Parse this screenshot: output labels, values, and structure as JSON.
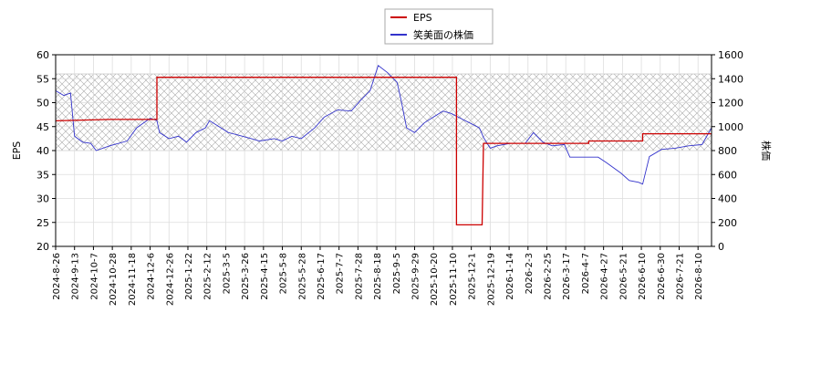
{
  "chart_data": {
    "type": "line",
    "grid": true,
    "legend": "top-center",
    "ylabel": "EPS",
    "y2label": "株価",
    "xlim": [
      0,
      486
    ],
    "ylim": [
      20,
      60
    ],
    "yticks": [
      20,
      25,
      30,
      35,
      40,
      45,
      50,
      55,
      60
    ],
    "y2lim": [
      0,
      1600
    ],
    "y2ticks": [
      0,
      200,
      400,
      600,
      800,
      1000,
      1200,
      1400,
      1600
    ],
    "shaded_range": [
      40,
      56
    ],
    "xticks": [
      {
        "value": 0,
        "label": "2024-8-26"
      },
      {
        "value": 14,
        "label": "2024-9-13"
      },
      {
        "value": 28,
        "label": "2024-10-7"
      },
      {
        "value": 42,
        "label": "2024-10-28"
      },
      {
        "value": 56,
        "label": "2024-11-18"
      },
      {
        "value": 70,
        "label": "2024-12-6"
      },
      {
        "value": 84,
        "label": "2024-12-26"
      },
      {
        "value": 98,
        "label": "2025-1-22"
      },
      {
        "value": 112,
        "label": "2025-2-12"
      },
      {
        "value": 126,
        "label": "2025-3-5"
      },
      {
        "value": 140,
        "label": "2025-3-26"
      },
      {
        "value": 154,
        "label": "2025-4-15"
      },
      {
        "value": 168,
        "label": "2025-5-8"
      },
      {
        "value": 182,
        "label": "2025-5-28"
      },
      {
        "value": 196,
        "label": "2025-6-17"
      },
      {
        "value": 210,
        "label": "2025-7-7"
      },
      {
        "value": 224,
        "label": "2025-7-28"
      },
      {
        "value": 238,
        "label": "2025-8-18"
      },
      {
        "value": 252,
        "label": "2025-9-5"
      },
      {
        "value": 266,
        "label": "2025-9-29"
      },
      {
        "value": 280,
        "label": "2025-10-20"
      },
      {
        "value": 294,
        "label": "2025-11-10"
      },
      {
        "value": 308,
        "label": "2025-12-1"
      },
      {
        "value": 322,
        "label": "2025-12-19"
      },
      {
        "value": 336,
        "label": "2026-1-14"
      },
      {
        "value": 350,
        "label": "2026-2-3"
      },
      {
        "value": 364,
        "label": "2026-2-25"
      },
      {
        "value": 378,
        "label": "2026-3-17"
      },
      {
        "value": 392,
        "label": "2026-4-7"
      },
      {
        "value": 406,
        "label": "2026-4-27"
      },
      {
        "value": 420,
        "label": "2026-5-21"
      },
      {
        "value": 434,
        "label": "2026-6-10"
      },
      {
        "value": 448,
        "label": "2026-6-30"
      },
      {
        "value": 462,
        "label": "2026-7-21"
      },
      {
        "value": 476,
        "label": "2026-8-10"
      }
    ],
    "series": [
      {
        "name": "EPS",
        "color": "#cc0000",
        "axis": "y",
        "x": [
          0,
          40,
          75,
          75,
          297,
          297,
          316,
          317,
          395,
          395,
          435,
          435,
          486
        ],
        "values": [
          46.2,
          46.5,
          46.5,
          55.3,
          55.3,
          24.5,
          24.5,
          41.5,
          41.5,
          42,
          42,
          43.5,
          43.5
        ]
      },
      {
        "name": "笑美面の株価",
        "color": "#3333cc",
        "axis": "y2",
        "x": [
          0,
          6,
          11,
          14,
          20,
          26,
          30,
          40,
          53,
          60,
          70,
          75,
          77,
          84,
          91,
          97,
          104,
          111,
          114,
          121,
          128,
          135,
          145,
          151,
          162,
          168,
          175,
          182,
          192,
          199,
          209,
          219,
          226,
          233,
          239,
          246,
          253,
          256,
          260,
          266,
          273,
          280,
          287,
          293,
          300,
          307,
          314,
          317,
          322,
          327,
          337,
          348,
          354,
          361,
          368,
          377,
          381,
          391,
          402,
          408,
          419,
          425,
          432,
          435,
          440,
          449,
          459,
          469,
          479,
          486
        ],
        "values": [
          1300,
          1260,
          1280,
          920,
          870,
          860,
          800,
          840,
          880,
          990,
          1070,
          1050,
          950,
          900,
          920,
          870,
          950,
          990,
          1050,
          1000,
          950,
          930,
          900,
          880,
          900,
          880,
          920,
          900,
          990,
          1080,
          1140,
          1130,
          1220,
          1300,
          1510,
          1450,
          1370,
          1220,
          990,
          950,
          1030,
          1080,
          1130,
          1110,
          1070,
          1030,
          990,
          910,
          820,
          840,
          860,
          860,
          950,
          870,
          840,
          850,
          745,
          745,
          745,
          700,
          610,
          550,
          535,
          520,
          750,
          810,
          820,
          840,
          850,
          990
        ]
      }
    ]
  }
}
